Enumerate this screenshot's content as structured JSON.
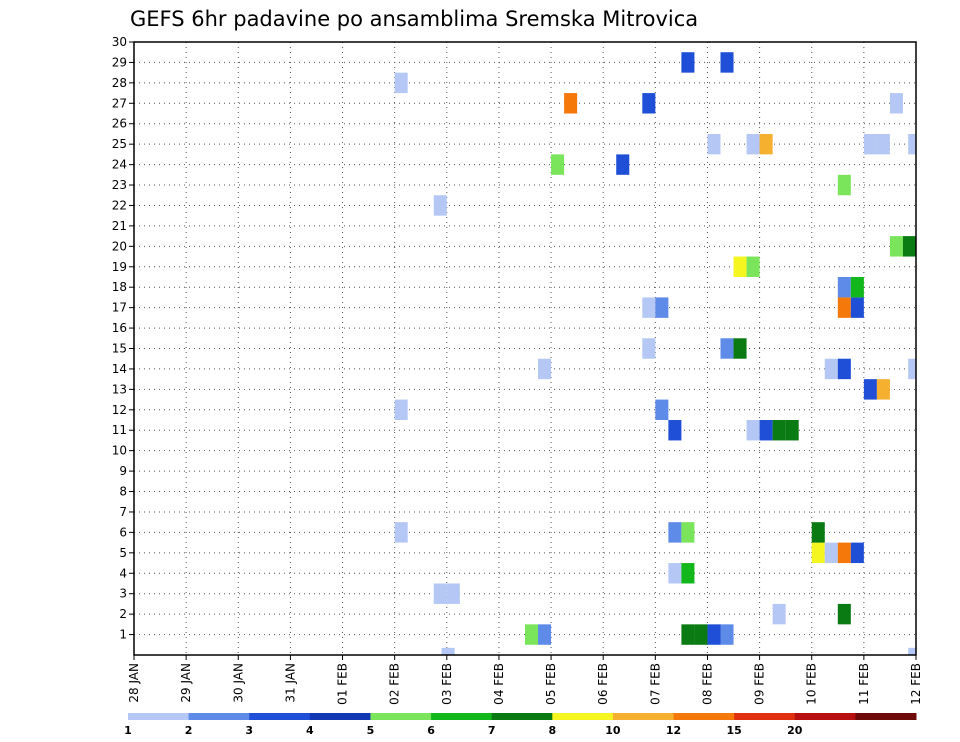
{
  "chart_data": {
    "type": "heatmap",
    "title": "GEFS 6hr padavine po ansamblima Sremska Mitrovica",
    "xlabel": "",
    "ylabel": "",
    "x_tick_labels": [
      "28 JAN",
      "29 JAN",
      "30 JAN",
      "31 JAN",
      "01 FEB",
      "02 FEB",
      "03 FEB",
      "04 FEB",
      "05 FEB",
      "06 FEB",
      "07 FEB",
      "08 FEB",
      "09 FEB",
      "10 FEB",
      "11 FEB",
      "12 FEB"
    ],
    "x_range_days": [
      0,
      15
    ],
    "y_tick_labels": [
      "1",
      "2",
      "3",
      "4",
      "5",
      "6",
      "7",
      "8",
      "9",
      "10",
      "11",
      "12",
      "13",
      "14",
      "15",
      "16",
      "17",
      "18",
      "19",
      "20",
      "21",
      "22",
      "23",
      "24",
      "25",
      "26",
      "27",
      "28",
      "29",
      "30"
    ],
    "y_range": [
      0,
      30
    ],
    "grid": "dotted",
    "colorbar": {
      "labels": [
        "1",
        "2",
        "3",
        "4",
        "5",
        "6",
        "7",
        "8",
        "10",
        "12",
        "15",
        "20"
      ],
      "colors": [
        "#b5c8f5",
        "#5e8ae8",
        "#1f4fd6",
        "#1238b4",
        "#7ae45a",
        "#12b71c",
        "#0a7a12",
        "#f5f520",
        "#f5b030",
        "#f5780a",
        "#e13010",
        "#b81010",
        "#6e0a0a"
      ]
    },
    "cells": [
      {
        "day": 5.9,
        "member": 0,
        "color": "#b5c8f5"
      },
      {
        "day": 14.85,
        "member": 0,
        "color": "#b5c8f5"
      },
      {
        "day": 7.5,
        "member": 1,
        "color": "#7ae45a"
      },
      {
        "day": 7.75,
        "member": 1,
        "color": "#5e8ae8"
      },
      {
        "day": 10.5,
        "member": 1,
        "color": "#0a7a12"
      },
      {
        "day": 10.75,
        "member": 1,
        "color": "#0a7a12"
      },
      {
        "day": 11.0,
        "member": 1,
        "color": "#1f4fd6"
      },
      {
        "day": 11.25,
        "member": 1,
        "color": "#5e8ae8"
      },
      {
        "day": 12.25,
        "member": 2,
        "color": "#b5c8f5"
      },
      {
        "day": 13.5,
        "member": 2,
        "color": "#0a7a12"
      },
      {
        "day": 5.75,
        "member": 3,
        "color": "#b5c8f5"
      },
      {
        "day": 6.0,
        "member": 3,
        "color": "#b5c8f5"
      },
      {
        "day": 10.25,
        "member": 4,
        "color": "#b5c8f5"
      },
      {
        "day": 10.5,
        "member": 4,
        "color": "#12b71c"
      },
      {
        "day": 13.0,
        "member": 5,
        "color": "#f5f520"
      },
      {
        "day": 13.25,
        "member": 5,
        "color": "#b5c8f5"
      },
      {
        "day": 13.5,
        "member": 5,
        "color": "#f5780a"
      },
      {
        "day": 13.75,
        "member": 5,
        "color": "#1f4fd6"
      },
      {
        "day": 5.0,
        "member": 6,
        "color": "#b5c8f5"
      },
      {
        "day": 10.25,
        "member": 6,
        "color": "#5e8ae8"
      },
      {
        "day": 10.5,
        "member": 6,
        "color": "#7ae45a"
      },
      {
        "day": 13.0,
        "member": 6,
        "color": "#0a7a12"
      },
      {
        "day": 10.25,
        "member": 11,
        "color": "#1f4fd6"
      },
      {
        "day": 11.75,
        "member": 11,
        "color": "#b5c8f5"
      },
      {
        "day": 12.0,
        "member": 11,
        "color": "#1f4fd6"
      },
      {
        "day": 12.25,
        "member": 11,
        "color": "#0a7a12"
      },
      {
        "day": 12.5,
        "member": 11,
        "color": "#0a7a12"
      },
      {
        "day": 5.0,
        "member": 12,
        "color": "#b5c8f5"
      },
      {
        "day": 10.0,
        "member": 12,
        "color": "#5e8ae8"
      },
      {
        "day": 14.0,
        "member": 13,
        "color": "#1f4fd6"
      },
      {
        "day": 14.25,
        "member": 13,
        "color": "#f5b030"
      },
      {
        "day": 7.75,
        "member": 14,
        "color": "#b5c8f5"
      },
      {
        "day": 13.25,
        "member": 14,
        "color": "#b5c8f5"
      },
      {
        "day": 13.5,
        "member": 14,
        "color": "#1f4fd6"
      },
      {
        "day": 14.85,
        "member": 14,
        "color": "#b5c8f5"
      },
      {
        "day": 9.75,
        "member": 15,
        "color": "#b5c8f5"
      },
      {
        "day": 11.25,
        "member": 15,
        "color": "#5e8ae8"
      },
      {
        "day": 11.5,
        "member": 15,
        "color": "#0a7a12"
      },
      {
        "day": 9.75,
        "member": 17,
        "color": "#b5c8f5"
      },
      {
        "day": 10.0,
        "member": 17,
        "color": "#5e8ae8"
      },
      {
        "day": 13.5,
        "member": 17,
        "color": "#f5780a"
      },
      {
        "day": 13.75,
        "member": 17,
        "color": "#1f4fd6"
      },
      {
        "day": 13.5,
        "member": 18,
        "color": "#5e8ae8"
      },
      {
        "day": 13.75,
        "member": 18,
        "color": "#12b71c"
      },
      {
        "day": 11.5,
        "member": 19,
        "color": "#f5f520"
      },
      {
        "day": 11.75,
        "member": 19,
        "color": "#7ae45a"
      },
      {
        "day": 14.5,
        "member": 20,
        "color": "#7ae45a"
      },
      {
        "day": 14.75,
        "member": 20,
        "color": "#0a7a12"
      },
      {
        "day": 5.75,
        "member": 22,
        "color": "#b5c8f5"
      },
      {
        "day": 13.5,
        "member": 23,
        "color": "#7ae45a"
      },
      {
        "day": 8.0,
        "member": 24,
        "color": "#7ae45a"
      },
      {
        "day": 9.25,
        "member": 24,
        "color": "#1f4fd6"
      },
      {
        "day": 11.0,
        "member": 25,
        "color": "#b5c8f5"
      },
      {
        "day": 11.75,
        "member": 25,
        "color": "#b5c8f5"
      },
      {
        "day": 12.0,
        "member": 25,
        "color": "#f5b030"
      },
      {
        "day": 14.0,
        "member": 25,
        "color": "#b5c8f5"
      },
      {
        "day": 14.25,
        "member": 25,
        "color": "#b5c8f5"
      },
      {
        "day": 14.85,
        "member": 25,
        "color": "#b5c8f5"
      },
      {
        "day": 8.25,
        "member": 27,
        "color": "#f5780a"
      },
      {
        "day": 9.75,
        "member": 27,
        "color": "#1f4fd6"
      },
      {
        "day": 14.5,
        "member": 27,
        "color": "#b5c8f5"
      },
      {
        "day": 5.0,
        "member": 28,
        "color": "#b5c8f5"
      },
      {
        "day": 10.5,
        "member": 29,
        "color": "#1f4fd6"
      },
      {
        "day": 11.25,
        "member": 29,
        "color": "#1f4fd6"
      }
    ]
  }
}
